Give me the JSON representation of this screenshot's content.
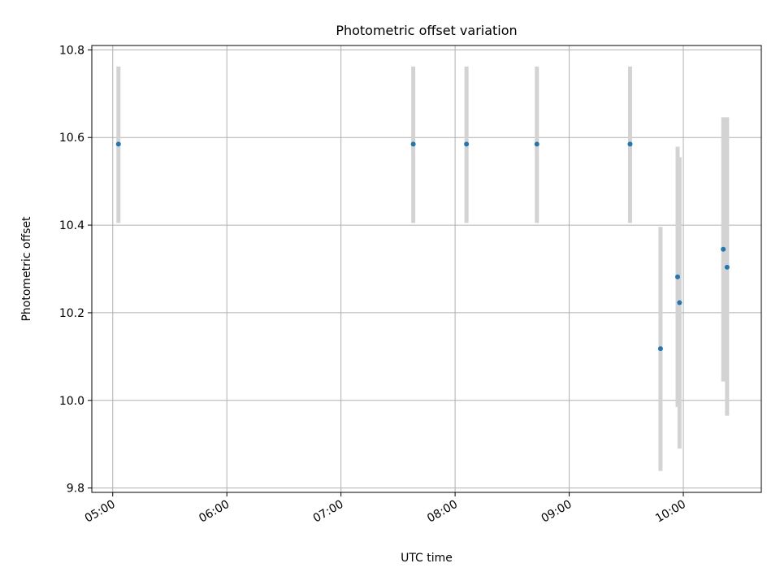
{
  "chart_data": {
    "type": "scatter",
    "title": "Photometric offset variation",
    "xlabel": "UTC time",
    "ylabel": "Photometric offset",
    "x_tick_labels": [
      "05:00",
      "06:00",
      "07:00",
      "08:00",
      "09:00",
      "10:00"
    ],
    "y_tick_labels": [
      "9.8",
      "10.0",
      "10.2",
      "10.4",
      "10.6",
      "10.8"
    ],
    "xlim": [
      "04:49",
      "10:41"
    ],
    "ylim": [
      9.79,
      10.81
    ],
    "grid": true,
    "points": [
      {
        "x": "05:03",
        "y": 10.585,
        "err_low": 10.405,
        "err_high": 10.762
      },
      {
        "x": "07:38",
        "y": 10.585,
        "err_low": 10.405,
        "err_high": 10.762
      },
      {
        "x": "08:06",
        "y": 10.585,
        "err_low": 10.405,
        "err_high": 10.762
      },
      {
        "x": "08:43",
        "y": 10.585,
        "err_low": 10.405,
        "err_high": 10.762
      },
      {
        "x": "09:32",
        "y": 10.585,
        "err_low": 10.405,
        "err_high": 10.762
      },
      {
        "x": "09:48",
        "y": 10.118,
        "err_low": 9.839,
        "err_high": 10.396
      },
      {
        "x": "09:57",
        "y": 10.282,
        "err_low": 9.985,
        "err_high": 10.579
      },
      {
        "x": "09:58",
        "y": 10.223,
        "err_low": 9.89,
        "err_high": 10.555
      },
      {
        "x": "10:21",
        "y": 10.345,
        "err_low": 10.043,
        "err_high": 10.646
      },
      {
        "x": "10:23",
        "y": 10.304,
        "err_low": 9.965,
        "err_high": 10.646
      }
    ],
    "colors": {
      "marker": "#1f77b4",
      "errorbar": "#d3d3d3",
      "grid": "#b0b0b0",
      "axes": "#000000"
    }
  }
}
